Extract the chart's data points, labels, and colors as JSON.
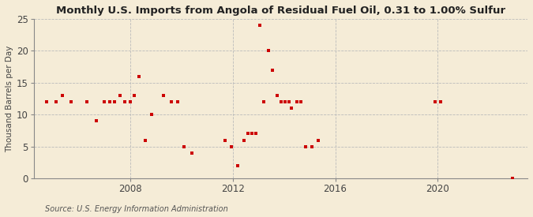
{
  "title": "Monthly U.S. Imports from Angola of Residual Fuel Oil, 0.31 to 1.00% Sulfur",
  "ylabel": "Thousand Barrels per Day",
  "source": "Source: U.S. Energy Information Administration",
  "bg_color": "#f5ecd7",
  "plot_bg_color": "#f5ecd7",
  "marker_color": "#cc0000",
  "grid_color": "#bbbbbb",
  "spine_color": "#888888",
  "ylim": [
    0,
    25
  ],
  "yticks": [
    0,
    5,
    10,
    15,
    20,
    25
  ],
  "xlim_start": 2004.25,
  "xlim_end": 2023.5,
  "xticks": [
    2008,
    2012,
    2016,
    2020
  ],
  "points": [
    [
      2004.75,
      12
    ],
    [
      2005.1,
      12
    ],
    [
      2005.35,
      13
    ],
    [
      2005.7,
      12
    ],
    [
      2006.3,
      12
    ],
    [
      2006.7,
      9
    ],
    [
      2007.0,
      12
    ],
    [
      2007.2,
      12
    ],
    [
      2007.4,
      12
    ],
    [
      2007.6,
      13
    ],
    [
      2007.8,
      12
    ],
    [
      2008.0,
      12
    ],
    [
      2008.15,
      13
    ],
    [
      2008.35,
      16
    ],
    [
      2008.6,
      6
    ],
    [
      2008.85,
      10
    ],
    [
      2009.3,
      13
    ],
    [
      2009.6,
      12
    ],
    [
      2009.85,
      12
    ],
    [
      2010.1,
      5
    ],
    [
      2010.4,
      4
    ],
    [
      2011.7,
      6
    ],
    [
      2011.95,
      5
    ],
    [
      2012.2,
      2
    ],
    [
      2012.45,
      6
    ],
    [
      2012.6,
      7
    ],
    [
      2012.75,
      7
    ],
    [
      2012.9,
      7
    ],
    [
      2013.05,
      24
    ],
    [
      2013.2,
      12
    ],
    [
      2013.4,
      20
    ],
    [
      2013.55,
      17
    ],
    [
      2013.75,
      13
    ],
    [
      2013.9,
      12
    ],
    [
      2014.05,
      12
    ],
    [
      2014.2,
      12
    ],
    [
      2014.3,
      11
    ],
    [
      2014.5,
      12
    ],
    [
      2014.65,
      12
    ],
    [
      2014.85,
      5
    ],
    [
      2015.1,
      5
    ],
    [
      2015.35,
      6
    ],
    [
      2019.9,
      12
    ],
    [
      2020.1,
      12
    ],
    [
      2022.9,
      0
    ]
  ]
}
